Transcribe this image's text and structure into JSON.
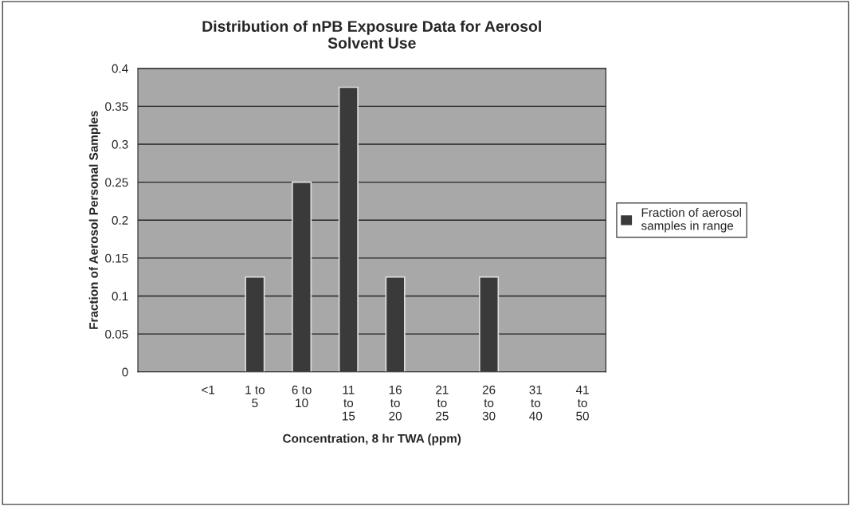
{
  "chart_data": {
    "type": "bar",
    "title": "Distribution of nPB Exposure Data for Aerosol\nSolvent Use",
    "xlabel": "Concentration, 8 hr TWA (ppm)",
    "ylabel": "Fraction of Aerosol Personal Samples",
    "categories": [
      null,
      "<1",
      "1 to 5",
      "6 to 10",
      "11 to 15",
      "16 to 20",
      "21 to 25",
      "26 to 30",
      "31 to 40",
      "41 to 50"
    ],
    "series": [
      {
        "name": "Fraction of aerosol samples in range",
        "color": "#3a3a3a",
        "values": [
          0,
          0,
          0.125,
          0.25,
          0.375,
          0.125,
          0,
          0.125,
          0,
          0
        ]
      }
    ],
    "ylim": [
      0,
      0.4
    ],
    "yticks": [
      0,
      0.05,
      0.1,
      0.15,
      0.2,
      0.25,
      0.3,
      0.35,
      0.4
    ],
    "grid": "y",
    "legend": "right"
  }
}
